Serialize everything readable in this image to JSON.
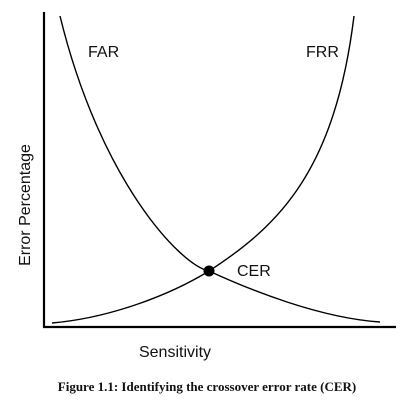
{
  "curves": {
    "far_label": "FAR",
    "frr_label": "FRR",
    "crossover_label": "CER"
  },
  "axes": {
    "x_label": "Sensitivity",
    "y_label": "Error Percentage"
  },
  "caption": "Figure 1.1: Identifying the crossover error rate (CER)"
}
